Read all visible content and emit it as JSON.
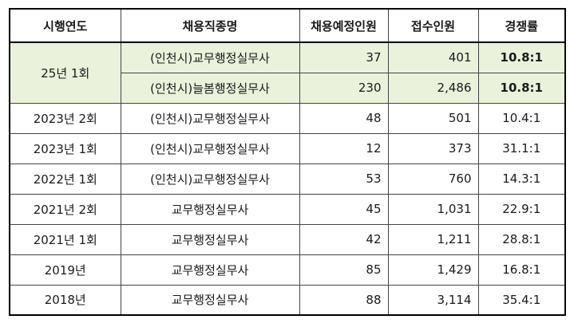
{
  "headers": [
    "시행연도",
    "채용직종명",
    "채용예정인원",
    "접수인원",
    "경쟁률"
  ],
  "group25": {
    "year": "25년  1회",
    "rows": [
      {
        "job": "(인천시)교무행정실무사",
        "planned": "37",
        "applied": "401",
        "ratio": "10.8:1"
      },
      {
        "job": "(인천시)늘봄행정실무사",
        "planned": "230",
        "applied": "2,486",
        "ratio": "10.8:1"
      }
    ]
  },
  "rows": [
    {
      "year": "2023년  2회",
      "job": "(인천시)교무행정실무사",
      "planned": "48",
      "applied": "501",
      "ratio": "10.4:1"
    },
    {
      "year": "2023년  1회",
      "job": "(인천시)교무행정실무사",
      "planned": "12",
      "applied": "373",
      "ratio": "31.1:1"
    },
    {
      "year": "2022년  1회",
      "job": "(인천시)교무행정실무사",
      "planned": "53",
      "applied": "760",
      "ratio": "14.3:1"
    },
    {
      "year": "2021년  2회",
      "job": "교무행정실무사",
      "planned": "45",
      "applied": "1,031",
      "ratio": "22.9:1"
    },
    {
      "year": "2021년  1회",
      "job": "교무행정실무사",
      "planned": "42",
      "applied": "1,211",
      "ratio": "28.8:1"
    },
    {
      "year": "2019년",
      "job": "교무행정실무사",
      "planned": "85",
      "applied": "1,429",
      "ratio": "16.8:1"
    },
    {
      "year": "2018년",
      "job": "교무행정실무사",
      "planned": "88",
      "applied": "3,114",
      "ratio": "35.4:1"
    }
  ],
  "colors": {
    "highlight": "#eaf2dc"
  }
}
